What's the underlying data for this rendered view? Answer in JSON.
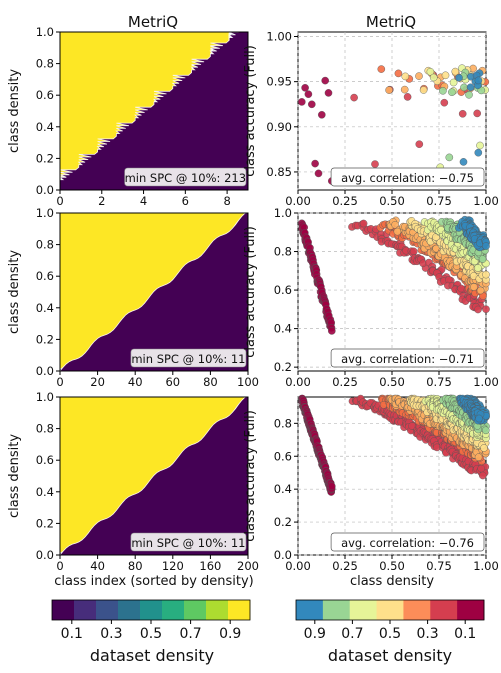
{
  "column_titles": [
    "MetriQ",
    "MetriQ"
  ],
  "colorbars": [
    {
      "label": "dataset density",
      "ticks": [
        "0.1",
        "0.3",
        "0.5",
        "0.7",
        "0.9"
      ],
      "colors": [
        "#440154",
        "#472d7b",
        "#3b528b",
        "#2c728e",
        "#21918c",
        "#28ae80",
        "#5ec962",
        "#addc30",
        "#fde725"
      ]
    },
    {
      "label": "dataset density",
      "ticks": [
        "0.9",
        "0.7",
        "0.5",
        "0.3",
        "0.1"
      ],
      "colors": [
        "#3288bd",
        "#99d594",
        "#e6f598",
        "#fee08b",
        "#fc8d59",
        "#d53e4f",
        "#9e0142"
      ]
    }
  ],
  "chart_data": [
    {
      "type": "heatmap",
      "panel": "left-1",
      "ylabel": "class density",
      "xlabel": "",
      "xlim": [
        0,
        9
      ],
      "ylim": [
        0,
        1
      ],
      "xticks": [
        "0",
        "2",
        "4",
        "6",
        "8"
      ],
      "yticks": [
        "0.0",
        "0.2",
        "0.4",
        "0.6",
        "0.8",
        "1.0"
      ],
      "annotation": "min SPC @ 10%: 213",
      "n_classes": 10
    },
    {
      "type": "scatter",
      "panel": "right-1",
      "ylabel": "class accuracy (Full)",
      "xlabel": "",
      "xlim": [
        0,
        1
      ],
      "ylim": [
        0.83,
        1.005
      ],
      "xticks": [
        "0.00",
        "0.25",
        "0.50",
        "0.75",
        "1.00"
      ],
      "yticks": [
        "0.85",
        "0.90",
        "0.95",
        "1.00"
      ],
      "grid": true,
      "annotation": "avg. correlation: −0.75"
    },
    {
      "type": "heatmap",
      "panel": "left-2",
      "ylabel": "class density",
      "xlabel": "",
      "xlim": [
        0,
        100
      ],
      "ylim": [
        0,
        1
      ],
      "xticks": [
        "0",
        "20",
        "40",
        "60",
        "80",
        "100"
      ],
      "yticks": [
        "0.0",
        "0.2",
        "0.4",
        "0.6",
        "0.8",
        "1.0"
      ],
      "annotation": "min SPC @ 10%: 11",
      "n_classes": 100
    },
    {
      "type": "scatter",
      "panel": "right-2",
      "ylabel": "class accuracy (Full)",
      "xlabel": "",
      "xlim": [
        0,
        1
      ],
      "ylim": [
        0.18,
        1.0
      ],
      "xticks": [
        "0.00",
        "0.25",
        "0.50",
        "0.75",
        "1.00"
      ],
      "yticks": [
        "0.2",
        "0.4",
        "0.6",
        "0.8",
        "1.0"
      ],
      "grid": true,
      "annotation": "avg. correlation: −0.71"
    },
    {
      "type": "heatmap",
      "panel": "left-3",
      "ylabel": "class density",
      "xlabel": "class index (sorted by density)",
      "xlim": [
        0,
        200
      ],
      "ylim": [
        0,
        1
      ],
      "xticks": [
        "0",
        "40",
        "80",
        "120",
        "160",
        "200"
      ],
      "yticks": [
        "0.0",
        "0.2",
        "0.4",
        "0.6",
        "0.8",
        "1.0"
      ],
      "annotation": "min SPC @ 10%: 11",
      "n_classes": 200
    },
    {
      "type": "scatter",
      "panel": "right-3",
      "ylabel": "class accuracy (Full)",
      "xlabel": "class density",
      "xlim": [
        0,
        1
      ],
      "ylim": [
        0.0,
        0.96
      ],
      "xticks": [
        "0.00",
        "0.25",
        "0.50",
        "0.75",
        "1.00"
      ],
      "yticks": [
        "0.0",
        "0.2",
        "0.4",
        "0.6",
        "0.8"
      ],
      "grid": true,
      "annotation": "avg. correlation: −0.76"
    }
  ]
}
